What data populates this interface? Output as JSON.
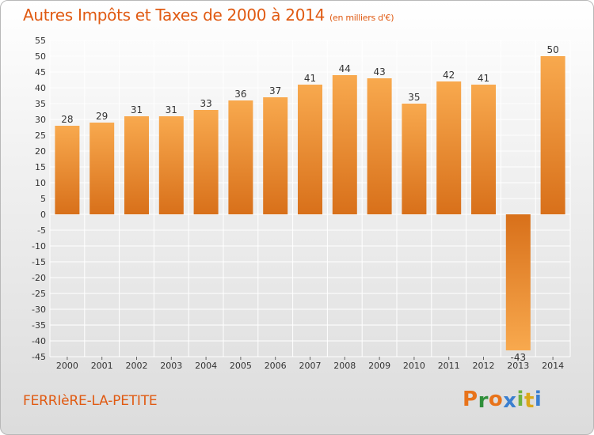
{
  "title": {
    "main": "Autres Impôts et Taxes de 2000 à 2014",
    "unit": "(en milliers d'€)"
  },
  "footer": {
    "place": "FERRIèRE-LA-PETITE",
    "logo_letters": [
      "P",
      "r",
      "o",
      "x",
      "i",
      "t",
      "i"
    ],
    "logo_colors": [
      "#e8731a",
      "#2f8f3a",
      "#e8731a",
      "#3a7fd0",
      "#6db33f",
      "#d9a81b",
      "#3a7fd0"
    ]
  },
  "colors": {
    "bar_light": "#f8a94e",
    "bar_dark": "#d8701a",
    "grid": "#ffffff",
    "axis_text": "#333333"
  },
  "chart_data": {
    "type": "bar",
    "categories": [
      "2000",
      "2001",
      "2002",
      "2003",
      "2004",
      "2005",
      "2006",
      "2007",
      "2008",
      "2009",
      "2010",
      "2011",
      "2012",
      "2013",
      "2014"
    ],
    "values": [
      28,
      29,
      31,
      31,
      33,
      36,
      37,
      41,
      44,
      43,
      35,
      42,
      41,
      -43,
      50
    ],
    "title": "Autres Impôts et Taxes de 2000 à 2014",
    "ylim": [
      -45,
      55
    ],
    "ytick_step": 5,
    "grid": true
  }
}
